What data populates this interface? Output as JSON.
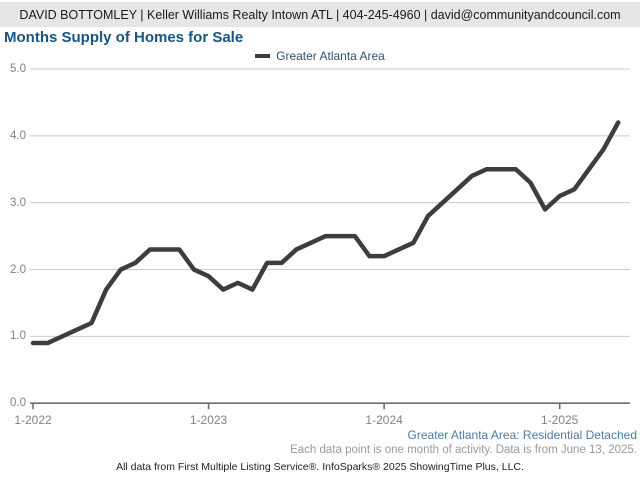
{
  "header": {
    "contact_line": "DAVID BOTTOMLEY | Keller Williams Realty Intown ATL | 404-245-4960 | david@communityandcouncil.com"
  },
  "title": "Months Supply of Homes for Sale",
  "legend": {
    "label": "Greater Atlanta Area",
    "swatch_color": "#3d3d3d"
  },
  "chart_data": {
    "type": "line",
    "title": "Months Supply of Homes for Sale",
    "xlabel": "",
    "ylabel": "",
    "ylim": [
      0,
      5
    ],
    "grid": "horizontal",
    "legend_position": "top-center",
    "months": [
      "2022-01",
      "2022-02",
      "2022-03",
      "2022-04",
      "2022-05",
      "2022-06",
      "2022-07",
      "2022-08",
      "2022-09",
      "2022-10",
      "2022-11",
      "2022-12",
      "2023-01",
      "2023-02",
      "2023-03",
      "2023-04",
      "2023-05",
      "2023-06",
      "2023-07",
      "2023-08",
      "2023-09",
      "2023-10",
      "2023-11",
      "2023-12",
      "2024-01",
      "2024-02",
      "2024-03",
      "2024-04",
      "2024-05",
      "2024-06",
      "2024-07",
      "2024-08",
      "2024-09",
      "2024-10",
      "2024-11",
      "2024-12",
      "2025-01",
      "2025-02",
      "2025-03",
      "2025-04",
      "2025-05"
    ],
    "series": [
      {
        "name": "Greater Atlanta Area",
        "color": "#3d3d3d",
        "values": [
          0.9,
          0.9,
          1.0,
          1.1,
          1.2,
          1.7,
          2.0,
          2.1,
          2.3,
          2.3,
          2.3,
          2.0,
          1.9,
          1.7,
          1.8,
          1.7,
          2.1,
          2.1,
          2.3,
          2.4,
          2.5,
          2.5,
          2.5,
          2.2,
          2.2,
          2.3,
          2.4,
          2.8,
          3.0,
          3.2,
          3.4,
          3.5,
          3.5,
          3.5,
          3.3,
          2.9,
          3.1,
          3.2,
          3.5,
          3.8,
          4.2
        ]
      }
    ],
    "x_tick_labels": [
      "1-2022",
      "1-2023",
      "1-2024",
      "1-2025"
    ],
    "x_tick_month_indices": [
      0,
      12,
      24,
      36
    ],
    "y_tick_values": [
      0,
      1,
      2,
      3,
      4,
      5
    ],
    "y_tick_labels": [
      "0.0",
      "1.0",
      "2.0",
      "3.0",
      "4.0",
      "5.0"
    ],
    "gridline_color": "#cbcbcb",
    "axis_color": "#6e6e6e"
  },
  "footer": {
    "series_description": "Greater Atlanta Area: Residential Detached",
    "data_note": "Each data point is one month of activity. Data is from June 13, 2025.",
    "copyright": "All data from First Multiple Listing Service®. InfoSparks® 2025 ShowingTime Plus, LLC."
  }
}
